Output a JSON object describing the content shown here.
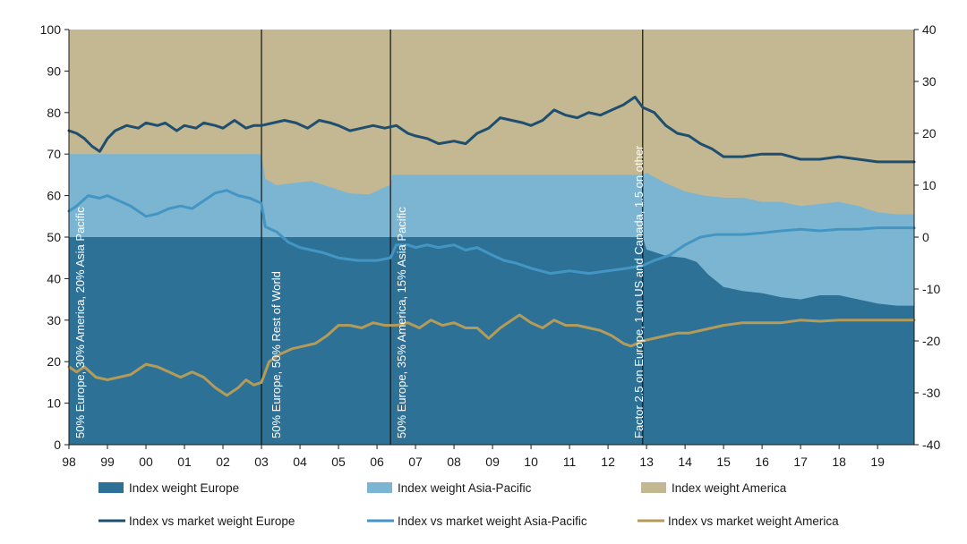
{
  "colors": {
    "europe_area": "#2e7197",
    "asia_area": "#7cb5d2",
    "america_area": "#c4b893",
    "europe_line": "#1f4e6e",
    "asia_line": "#4396c4",
    "america_line": "#b39b5a",
    "axis": "#1a1a1a"
  },
  "chart_data": {
    "type": "area",
    "x_range": [
      1998.0,
      2019.95
    ],
    "x_ticks": [
      {
        "x": 1998,
        "label": "98"
      },
      {
        "x": 1999,
        "label": "99"
      },
      {
        "x": 2000,
        "label": "00"
      },
      {
        "x": 2001,
        "label": "01"
      },
      {
        "x": 2002,
        "label": "02"
      },
      {
        "x": 2003,
        "label": "03"
      },
      {
        "x": 2004,
        "label": "04"
      },
      {
        "x": 2005,
        "label": "05"
      },
      {
        "x": 2006,
        "label": "06"
      },
      {
        "x": 2007,
        "label": "07"
      },
      {
        "x": 2008,
        "label": "08"
      },
      {
        "x": 2009,
        "label": "09"
      },
      {
        "x": 2010,
        "label": "10"
      },
      {
        "x": 2011,
        "label": "11"
      },
      {
        "x": 2012,
        "label": "12"
      },
      {
        "x": 2013,
        "label": "13"
      },
      {
        "x": 2014,
        "label": "14"
      },
      {
        "x": 2015,
        "label": "15"
      },
      {
        "x": 2016,
        "label": "16"
      },
      {
        "x": 2017,
        "label": "17"
      },
      {
        "x": 2018,
        "label": "18"
      },
      {
        "x": 2019,
        "label": "19"
      }
    ],
    "y_left": {
      "min": 0,
      "max": 100,
      "ticks": [
        "0",
        "10",
        "20",
        "30",
        "40",
        "50",
        "60",
        "70",
        "80",
        "90",
        "100"
      ]
    },
    "y_right": {
      "min": -40,
      "max": 40,
      "ticks": [
        "-40",
        "-30",
        "-20",
        "-10",
        "0",
        "10",
        "20",
        "30",
        "40"
      ]
    },
    "regime_lines": [
      2003.0,
      2006.35,
      2012.9
    ],
    "regime_labels": [
      "50% Europe, 30% America, 20% Asia Pacific",
      "50% Europe, 50% Rest of World",
      "50% Europe, 35% America, 15% Asia Pacific",
      "Factor 2.5 on Europe, 1 on US and Canada, 1.5 on other"
    ],
    "area_series": [
      {
        "name": "Index weight Europe",
        "points": [
          [
            1998.0,
            50
          ],
          [
            2012.9,
            50
          ],
          [
            2013.0,
            47
          ],
          [
            2013.5,
            45.5
          ],
          [
            2014.0,
            45
          ],
          [
            2014.3,
            44
          ],
          [
            2014.6,
            41
          ],
          [
            2015.0,
            38
          ],
          [
            2015.5,
            37
          ],
          [
            2016.0,
            36.5
          ],
          [
            2016.5,
            35.5
          ],
          [
            2017.0,
            35
          ],
          [
            2017.5,
            36
          ],
          [
            2018.0,
            36
          ],
          [
            2018.5,
            35
          ],
          [
            2019.0,
            34
          ],
          [
            2019.5,
            33.5
          ],
          [
            2019.95,
            33.5
          ]
        ]
      },
      {
        "name": "Index weight Asia-Pacific",
        "points": [
          [
            1998.0,
            70
          ],
          [
            2003.0,
            70
          ],
          [
            2003.1,
            64
          ],
          [
            2003.4,
            62.5
          ],
          [
            2003.8,
            63
          ],
          [
            2004.3,
            63.5
          ],
          [
            2004.8,
            62
          ],
          [
            2005.3,
            60.5
          ],
          [
            2005.8,
            60.3
          ],
          [
            2006.2,
            62
          ],
          [
            2006.35,
            62.5
          ],
          [
            2006.4,
            65
          ],
          [
            2012.9,
            65
          ],
          [
            2013.0,
            65.5
          ],
          [
            2013.5,
            63
          ],
          [
            2014.0,
            61
          ],
          [
            2014.5,
            60
          ],
          [
            2015.0,
            59.5
          ],
          [
            2015.5,
            59.5
          ],
          [
            2016.0,
            58.5
          ],
          [
            2016.5,
            58.5
          ],
          [
            2017.0,
            57.5
          ],
          [
            2017.5,
            58
          ],
          [
            2018.0,
            58.5
          ],
          [
            2018.5,
            57.5
          ],
          [
            2019.0,
            56
          ],
          [
            2019.5,
            55.5
          ],
          [
            2019.95,
            55.5
          ]
        ]
      },
      {
        "name": "Index weight America",
        "points": [
          [
            1998.0,
            100
          ],
          [
            2019.95,
            100
          ]
        ]
      }
    ],
    "line_series": [
      {
        "name": "Index vs market weight Europe",
        "axis": "right",
        "points": [
          [
            1998.0,
            20.5
          ],
          [
            1998.2,
            20.0
          ],
          [
            1998.4,
            19.0
          ],
          [
            1998.6,
            17.5
          ],
          [
            1998.8,
            16.5
          ],
          [
            1999.0,
            19.0
          ],
          [
            1999.2,
            20.5
          ],
          [
            1999.5,
            21.5
          ],
          [
            1999.8,
            21.0
          ],
          [
            2000.0,
            22.0
          ],
          [
            2000.3,
            21.5
          ],
          [
            2000.5,
            22.0
          ],
          [
            2000.8,
            20.5
          ],
          [
            2001.0,
            21.5
          ],
          [
            2001.3,
            21.0
          ],
          [
            2001.5,
            22.0
          ],
          [
            2001.8,
            21.5
          ],
          [
            2002.0,
            21.0
          ],
          [
            2002.3,
            22.5
          ],
          [
            2002.6,
            21.0
          ],
          [
            2002.8,
            21.5
          ],
          [
            2003.0,
            21.5
          ],
          [
            2003.3,
            22.0
          ],
          [
            2003.6,
            22.5
          ],
          [
            2003.9,
            22.0
          ],
          [
            2004.2,
            21.0
          ],
          [
            2004.5,
            22.5
          ],
          [
            2004.8,
            22.0
          ],
          [
            2005.0,
            21.5
          ],
          [
            2005.3,
            20.5
          ],
          [
            2005.6,
            21.0
          ],
          [
            2005.9,
            21.5
          ],
          [
            2006.2,
            21.0
          ],
          [
            2006.5,
            21.5
          ],
          [
            2006.8,
            20.0
          ],
          [
            2007.0,
            19.5
          ],
          [
            2007.3,
            19.0
          ],
          [
            2007.6,
            18.0
          ],
          [
            2008.0,
            18.5
          ],
          [
            2008.3,
            18.0
          ],
          [
            2008.6,
            20.0
          ],
          [
            2008.9,
            21.0
          ],
          [
            2009.2,
            23.0
          ],
          [
            2009.5,
            22.5
          ],
          [
            2009.8,
            22.0
          ],
          [
            2010.0,
            21.5
          ],
          [
            2010.3,
            22.5
          ],
          [
            2010.6,
            24.5
          ],
          [
            2010.9,
            23.5
          ],
          [
            2011.2,
            23.0
          ],
          [
            2011.5,
            24.0
          ],
          [
            2011.8,
            23.5
          ],
          [
            2012.1,
            24.5
          ],
          [
            2012.4,
            25.5
          ],
          [
            2012.7,
            27.0
          ],
          [
            2012.9,
            25.0
          ],
          [
            2013.2,
            24.0
          ],
          [
            2013.5,
            21.5
          ],
          [
            2013.8,
            20.0
          ],
          [
            2014.1,
            19.5
          ],
          [
            2014.4,
            18.0
          ],
          [
            2014.7,
            17.0
          ],
          [
            2015.0,
            15.5
          ],
          [
            2015.5,
            15.5
          ],
          [
            2016.0,
            16.0
          ],
          [
            2016.5,
            16.0
          ],
          [
            2017.0,
            15.0
          ],
          [
            2017.5,
            15.0
          ],
          [
            2018.0,
            15.5
          ],
          [
            2018.5,
            15.0
          ],
          [
            2019.0,
            14.5
          ],
          [
            2019.5,
            14.5
          ],
          [
            2019.95,
            14.5
          ]
        ]
      },
      {
        "name": "Index vs market weight Asia-Pacific",
        "axis": "right",
        "points": [
          [
            1998.0,
            5.0
          ],
          [
            1998.2,
            6.0
          ],
          [
            1998.5,
            8.0
          ],
          [
            1998.8,
            7.5
          ],
          [
            1999.0,
            8.0
          ],
          [
            1999.3,
            7.0
          ],
          [
            1999.6,
            6.0
          ],
          [
            2000.0,
            4.0
          ],
          [
            2000.3,
            4.5
          ],
          [
            2000.6,
            5.5
          ],
          [
            2000.9,
            6.0
          ],
          [
            2001.2,
            5.5
          ],
          [
            2001.5,
            7.0
          ],
          [
            2001.8,
            8.5
          ],
          [
            2002.1,
            9.0
          ],
          [
            2002.4,
            8.0
          ],
          [
            2002.7,
            7.5
          ],
          [
            2003.0,
            6.5
          ],
          [
            2003.1,
            2.0
          ],
          [
            2003.4,
            1.0
          ],
          [
            2003.7,
            -1.0
          ],
          [
            2004.0,
            -2.0
          ],
          [
            2004.3,
            -2.5
          ],
          [
            2004.6,
            -3.0
          ],
          [
            2005.0,
            -4.0
          ],
          [
            2005.5,
            -4.5
          ],
          [
            2006.0,
            -4.5
          ],
          [
            2006.35,
            -4.0
          ],
          [
            2006.5,
            -1.5
          ],
          [
            2006.8,
            -1.5
          ],
          [
            2007.0,
            -2.0
          ],
          [
            2007.3,
            -1.5
          ],
          [
            2007.6,
            -2.0
          ],
          [
            2008.0,
            -1.5
          ],
          [
            2008.3,
            -2.5
          ],
          [
            2008.6,
            -2.0
          ],
          [
            2009.0,
            -3.5
          ],
          [
            2009.3,
            -4.5
          ],
          [
            2009.6,
            -5.0
          ],
          [
            2010.0,
            -6.0
          ],
          [
            2010.5,
            -7.0
          ],
          [
            2011.0,
            -6.5
          ],
          [
            2011.5,
            -7.0
          ],
          [
            2012.0,
            -6.5
          ],
          [
            2012.5,
            -6.0
          ],
          [
            2012.9,
            -5.5
          ],
          [
            2013.2,
            -4.5
          ],
          [
            2013.6,
            -3.5
          ],
          [
            2014.0,
            -1.5
          ],
          [
            2014.4,
            0.0
          ],
          [
            2014.8,
            0.5
          ],
          [
            2015.5,
            0.5
          ],
          [
            2016.0,
            0.8
          ],
          [
            2016.5,
            1.2
          ],
          [
            2017.0,
            1.5
          ],
          [
            2017.5,
            1.2
          ],
          [
            2018.0,
            1.5
          ],
          [
            2018.5,
            1.5
          ],
          [
            2019.0,
            1.8
          ],
          [
            2019.5,
            1.8
          ],
          [
            2019.95,
            1.8
          ]
        ]
      },
      {
        "name": "Index vs market weight America",
        "axis": "right",
        "points": [
          [
            1998.0,
            -25.0
          ],
          [
            1998.2,
            -26.0
          ],
          [
            1998.4,
            -25.0
          ],
          [
            1998.7,
            -27.0
          ],
          [
            1999.0,
            -27.5
          ],
          [
            1999.3,
            -27.0
          ],
          [
            1999.6,
            -26.5
          ],
          [
            2000.0,
            -24.5
          ],
          [
            2000.3,
            -25.0
          ],
          [
            2000.6,
            -26.0
          ],
          [
            2000.9,
            -27.0
          ],
          [
            2001.2,
            -26.0
          ],
          [
            2001.5,
            -27.0
          ],
          [
            2001.8,
            -29.0
          ],
          [
            2002.1,
            -30.5
          ],
          [
            2002.4,
            -29.0
          ],
          [
            2002.6,
            -27.5
          ],
          [
            2002.8,
            -28.5
          ],
          [
            2003.0,
            -28.0
          ],
          [
            2003.2,
            -24.0
          ],
          [
            2003.5,
            -22.5
          ],
          [
            2003.8,
            -21.5
          ],
          [
            2004.1,
            -21.0
          ],
          [
            2004.4,
            -20.5
          ],
          [
            2004.7,
            -19.0
          ],
          [
            2005.0,
            -17.0
          ],
          [
            2005.3,
            -17.0
          ],
          [
            2005.6,
            -17.5
          ],
          [
            2005.9,
            -16.5
          ],
          [
            2006.2,
            -17.0
          ],
          [
            2006.5,
            -17.0
          ],
          [
            2006.8,
            -16.5
          ],
          [
            2007.1,
            -17.5
          ],
          [
            2007.4,
            -16.0
          ],
          [
            2007.7,
            -17.0
          ],
          [
            2008.0,
            -16.5
          ],
          [
            2008.3,
            -17.5
          ],
          [
            2008.6,
            -17.5
          ],
          [
            2008.9,
            -19.5
          ],
          [
            2009.2,
            -17.5
          ],
          [
            2009.5,
            -16.0
          ],
          [
            2009.7,
            -15.0
          ],
          [
            2010.0,
            -16.5
          ],
          [
            2010.3,
            -17.5
          ],
          [
            2010.6,
            -16.0
          ],
          [
            2010.9,
            -17.0
          ],
          [
            2011.2,
            -17.0
          ],
          [
            2011.5,
            -17.5
          ],
          [
            2011.8,
            -18.0
          ],
          [
            2012.1,
            -19.0
          ],
          [
            2012.4,
            -20.5
          ],
          [
            2012.6,
            -21.0
          ],
          [
            2012.9,
            -20.0
          ],
          [
            2013.2,
            -19.5
          ],
          [
            2013.5,
            -19.0
          ],
          [
            2013.8,
            -18.5
          ],
          [
            2014.1,
            -18.5
          ],
          [
            2014.4,
            -18.0
          ],
          [
            2014.7,
            -17.5
          ],
          [
            2015.0,
            -17.0
          ],
          [
            2015.5,
            -16.5
          ],
          [
            2016.0,
            -16.5
          ],
          [
            2016.5,
            -16.5
          ],
          [
            2017.0,
            -16.0
          ],
          [
            2017.5,
            -16.2
          ],
          [
            2018.0,
            -16.0
          ],
          [
            2018.5,
            -16.0
          ],
          [
            2019.0,
            -16.0
          ],
          [
            2019.5,
            -16.0
          ],
          [
            2019.95,
            -16.0
          ]
        ]
      }
    ]
  }
}
